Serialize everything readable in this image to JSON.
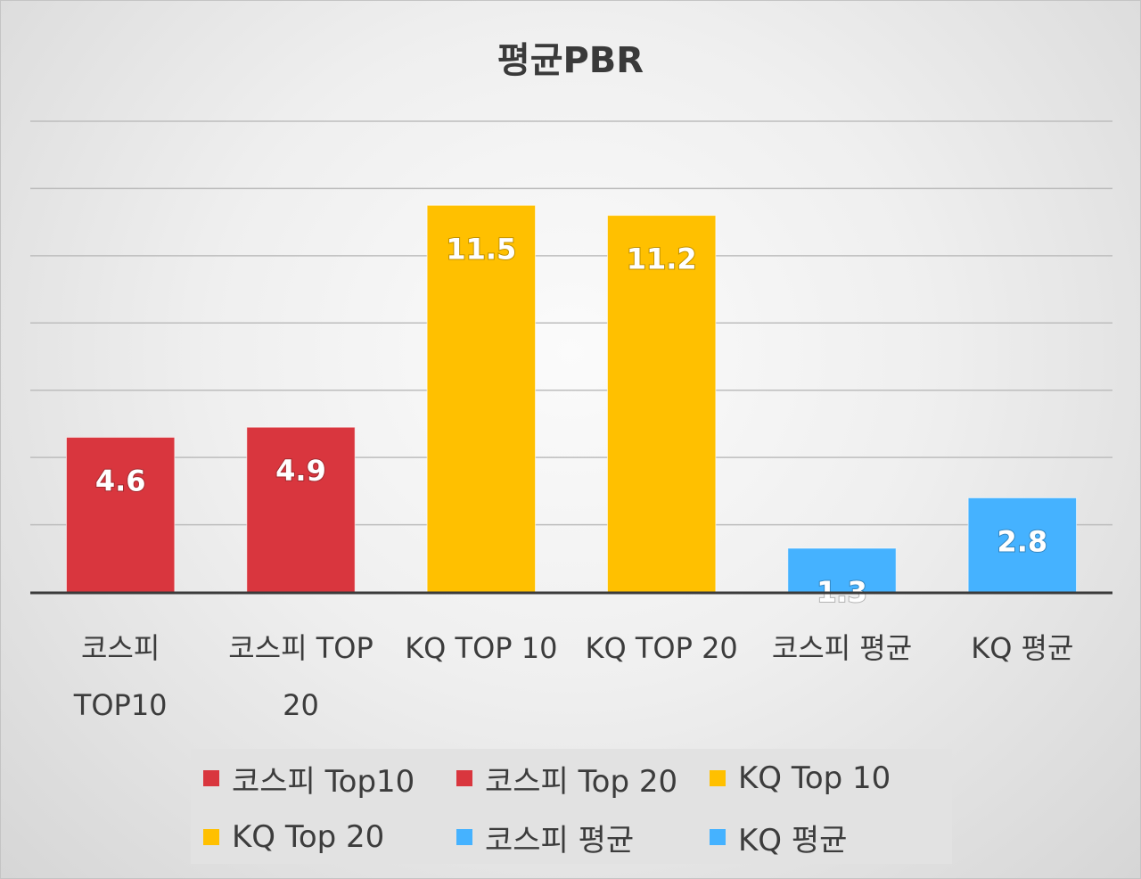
{
  "chart_data": {
    "type": "bar",
    "title": "평균PBR",
    "categories": [
      "코스피 TOP10",
      "코스피 TOP 20",
      "KQ TOP 10",
      "KQ TOP 20",
      "코스피 평균",
      "KQ 평균"
    ],
    "category_lines": [
      [
        "코스피",
        "TOP10"
      ],
      [
        "코스피 TOP",
        "20"
      ],
      [
        "KQ TOP 10"
      ],
      [
        "KQ TOP 20"
      ],
      [
        "코스피 평균"
      ],
      [
        "KQ 평균"
      ]
    ],
    "values": [
      4.6,
      4.9,
      11.5,
      11.2,
      1.3,
      2.8
    ],
    "value_labels": [
      "4.6",
      "4.9",
      "11.5",
      "11.2",
      "1.3",
      "2.8"
    ],
    "colors": [
      "#d9363e",
      "#d9363e",
      "#ffc000",
      "#ffc000",
      "#45b2ff",
      "#45b2ff"
    ],
    "legend": [
      "코스피 Top10",
      "코스피 Top 20",
      "KQ Top 10",
      "KQ Top 20",
      "코스피 평균",
      "KQ 평균"
    ],
    "ylim": [
      0,
      14
    ],
    "ytick_step": 2,
    "grid": true,
    "xlabel": "",
    "ylabel": ""
  }
}
